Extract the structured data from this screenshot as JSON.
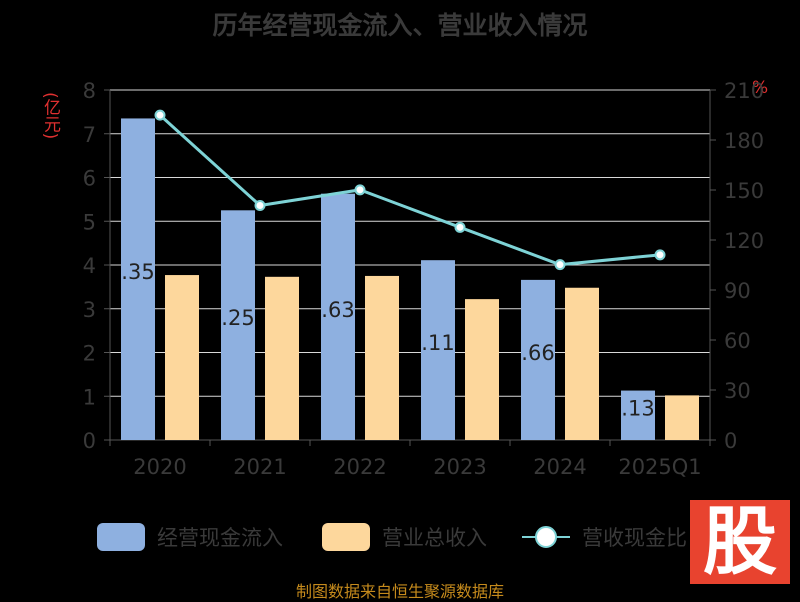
{
  "chart_data": {
    "type": "bar",
    "title": "历年经营现金流入、营业收入情况",
    "categories": [
      "2020",
      "2021",
      "2022",
      "2023",
      "2024",
      "2025Q1"
    ],
    "y_left_unit": "(亿元)",
    "y_right_unit": "%",
    "ylim_left": [
      0,
      8
    ],
    "ylim_right": [
      0,
      210
    ],
    "yticks_left": [
      "0",
      "1",
      "2",
      "3",
      "4",
      "5",
      "6",
      "7",
      "8"
    ],
    "yticks_right": [
      "0",
      "30",
      "60",
      "90",
      "120",
      "150",
      "180",
      "210"
    ],
    "grid": true,
    "legend_position": "bottom",
    "series": [
      {
        "name": "经营现金流入",
        "type": "bar",
        "axis": "left",
        "color": "#8eb0e0",
        "values": [
          7.35,
          5.25,
          5.63,
          4.11,
          3.66,
          1.13
        ],
        "data_labels": [
          ".35",
          ".25",
          ".63",
          ".11",
          ".66",
          ".13"
        ]
      },
      {
        "name": "营业总收入",
        "type": "bar",
        "axis": "left",
        "color": "#fdd79c",
        "values": [
          3.77,
          3.73,
          3.75,
          3.22,
          3.48,
          1.02
        ]
      },
      {
        "name": "营收现金比",
        "type": "line",
        "axis": "right",
        "color": "#7ed3d6",
        "values": [
          194.9,
          140.7,
          150.1,
          127.6,
          105.2,
          111.1
        ]
      }
    ]
  },
  "legend": [
    {
      "label": "经营现金流入"
    },
    {
      "label": "营业总收入"
    },
    {
      "label": "营收现金比"
    }
  ],
  "logo": {
    "text": "股"
  },
  "source_note": "制图数据来自恒生聚源数据库"
}
